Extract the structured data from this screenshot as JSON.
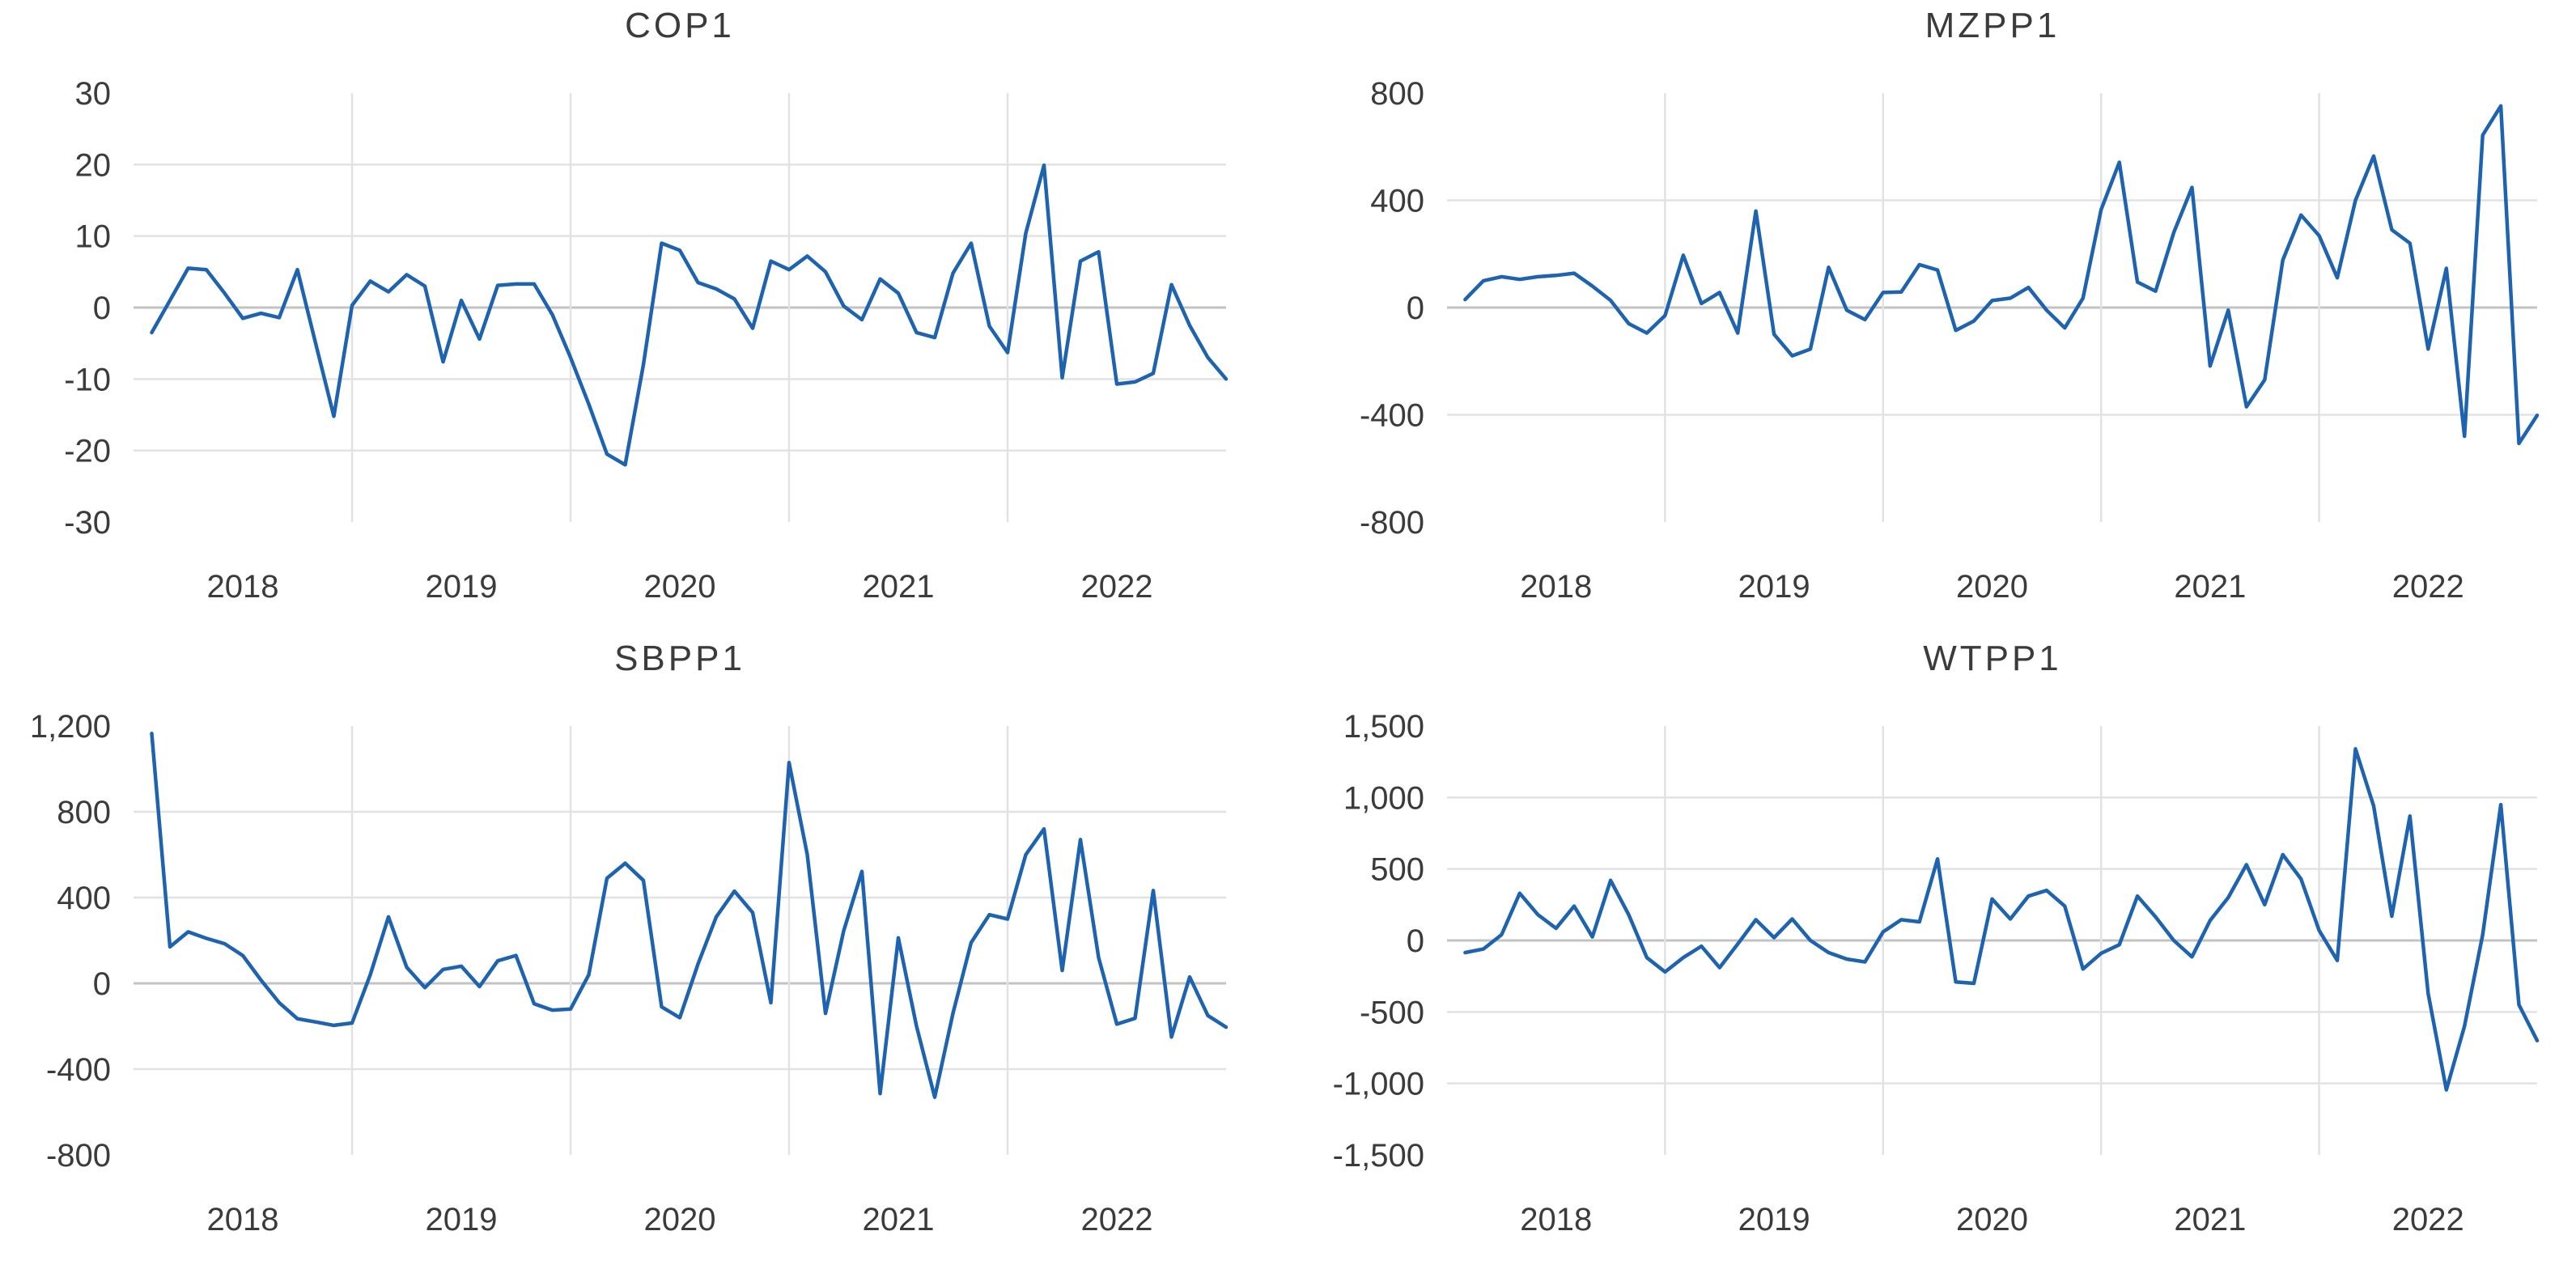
{
  "page": {
    "background": "#ffffff"
  },
  "style": {
    "series_color": "#1d63af",
    "gridline_color": "#e2e2e2",
    "zero_line_color": "#c3c3c3",
    "text_color": "#3b3b3b"
  },
  "chart_data": [
    {
      "type": "line",
      "title": "COP1",
      "x_start_month": "2018-02",
      "x_end_month": "2023-01",
      "x_freq": "monthly",
      "x_tick_labels": [
        "2018",
        "2019",
        "2020",
        "2021",
        "2022"
      ],
      "y_ticks": [
        30,
        20,
        10,
        0,
        -10,
        -20,
        -30
      ],
      "y_tick_labels": [
        "30",
        "20",
        "10",
        "0",
        "-10",
        "-20",
        "-30"
      ],
      "ylim": [
        -30,
        30
      ],
      "grid": true,
      "legend": false,
      "series": [
        {
          "name": "COP1",
          "values": [
            -3.5,
            1,
            5.5,
            5.3,
            2,
            -1.5,
            -0.8,
            -1.4,
            5.3,
            -5,
            -15.2,
            0.3,
            3.7,
            2.2,
            4.6,
            3,
            -7.6,
            1,
            -4.4,
            3.1,
            3.3,
            3.3,
            -1,
            -7,
            -13.5,
            -20.5,
            -22,
            -8,
            9,
            8,
            3.5,
            2.6,
            1.2,
            -2.9,
            6.5,
            5.3,
            7.2,
            5,
            0.2,
            -1.7,
            4,
            2,
            -3.5,
            -4.2,
            4.8,
            9,
            -2.6,
            -6.3,
            10.4,
            19.9,
            -9.8,
            6.5,
            7.8,
            -10.7,
            -10.4,
            -9.2,
            3.2,
            -2.5,
            -7,
            -10
          ]
        }
      ]
    },
    {
      "type": "line",
      "title": "MZPP1",
      "x_start_month": "2018-02",
      "x_end_month": "2023-01",
      "x_freq": "monthly",
      "x_tick_labels": [
        "2018",
        "2019",
        "2020",
        "2021",
        "2022"
      ],
      "y_ticks": [
        800,
        400,
        0,
        -400,
        -800
      ],
      "y_tick_labels": [
        "800",
        "400",
        "0",
        "-400",
        "-800"
      ],
      "ylim": [
        -800,
        800
      ],
      "grid": true,
      "legend": false,
      "series": [
        {
          "name": "MZPP1",
          "values": [
            30,
            100,
            115,
            105,
            115,
            120,
            128,
            80,
            27,
            -60,
            -95,
            -30,
            195,
            15,
            56,
            -95,
            360,
            -100,
            -180,
            -155,
            150,
            -10,
            -45,
            56,
            58,
            160,
            140,
            -85,
            -50,
            26,
            35,
            75,
            -10,
            -76,
            35,
            365,
            542,
            95,
            61,
            280,
            448,
            -218,
            -10,
            -370,
            -270,
            177,
            345,
            268,
            111,
            400,
            565,
            290,
            240,
            -155,
            146,
            -480,
            643,
            752,
            -507,
            -402
          ]
        }
      ]
    },
    {
      "type": "line",
      "title": "SBPP1",
      "x_start_month": "2018-02",
      "x_end_month": "2023-01",
      "x_freq": "monthly",
      "x_tick_labels": [
        "2018",
        "2019",
        "2020",
        "2021",
        "2022"
      ],
      "y_ticks": [
        1200,
        800,
        400,
        0,
        -400,
        -800
      ],
      "y_tick_labels": [
        "1,200",
        "800",
        "400",
        "0",
        "-400",
        "-800"
      ],
      "ylim": [
        -800,
        1200
      ],
      "grid": true,
      "legend": false,
      "series": [
        {
          "name": "SBPP1",
          "values": [
            1165,
            170,
            240,
            210,
            185,
            130,
            15,
            -90,
            -165,
            -180,
            -196,
            -185,
            40,
            310,
            75,
            -20,
            65,
            80,
            -15,
            105,
            130,
            -95,
            -125,
            -120,
            40,
            490,
            560,
            480,
            -110,
            -160,
            90,
            310,
            430,
            330,
            -90,
            1029,
            600,
            -140,
            245,
            522,
            -514,
            212,
            -200,
            -531,
            -140,
            190,
            320,
            300,
            600,
            720,
            60,
            670,
            120,
            -190,
            -163,
            433,
            -250,
            30,
            -150,
            -204
          ]
        }
      ]
    },
    {
      "type": "line",
      "title": "WTPP1",
      "x_start_month": "2018-02",
      "x_end_month": "2023-01",
      "x_freq": "monthly",
      "x_tick_labels": [
        "2018",
        "2019",
        "2020",
        "2021",
        "2022"
      ],
      "y_ticks": [
        1500,
        1000,
        500,
        0,
        -500,
        -1000,
        -1500
      ],
      "y_tick_labels": [
        "1,500",
        "1,000",
        "500",
        "0",
        "-500",
        "-1,000",
        "-1,500"
      ],
      "ylim": [
        -1500,
        1500
      ],
      "grid": true,
      "legend": false,
      "series": [
        {
          "name": "WTPP1",
          "values": [
            -85,
            -60,
            40,
            330,
            180,
            85,
            240,
            25,
            420,
            180,
            -120,
            -220,
            -120,
            -40,
            -190,
            -25,
            145,
            20,
            150,
            0,
            -85,
            -130,
            -150,
            60,
            145,
            130,
            570,
            -290,
            -300,
            290,
            150,
            310,
            350,
            240,
            -200,
            -90,
            -30,
            310,
            165,
            0,
            -115,
            140,
            300,
            530,
            250,
            600,
            430,
            70,
            -140,
            1340,
            940,
            170,
            870,
            -370,
            -1045,
            -600,
            40,
            950,
            -450,
            -700
          ]
        }
      ]
    }
  ]
}
